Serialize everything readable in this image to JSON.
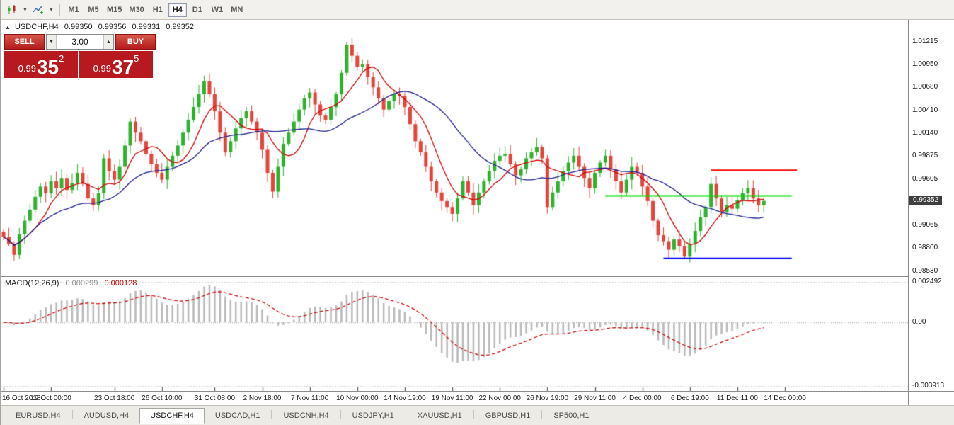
{
  "toolbar": {
    "timeframes": [
      "M1",
      "M5",
      "M15",
      "M30",
      "H1",
      "H4",
      "D1",
      "W1",
      "MN"
    ],
    "active_timeframe": "H4",
    "icons": [
      "candlestick-chart-icon",
      "indicators-icon"
    ],
    "caret_glyph": "▼"
  },
  "chart": {
    "one_click_toggle": "▲",
    "symbol_period": "USDCHF,H4",
    "ohlc": {
      "open": "0.99350",
      "high": "0.99356",
      "low": "0.99331",
      "close": "0.99352"
    },
    "trade_panel": {
      "sell_label": "SELL",
      "buy_label": "BUY",
      "volume": "3.00",
      "volume_down_icon": "▼",
      "volume_up_icon": "▲",
      "sell_price": {
        "prefix": "0.99",
        "big": "35",
        "sup": "2"
      },
      "buy_price": {
        "prefix": "0.99",
        "big": "37",
        "sup": "5"
      }
    },
    "price_axis": {
      "labels": [
        "1.01215",
        "1.00950",
        "1.00680",
        "1.00410",
        "1.00140",
        "0.99875",
        "0.99605",
        "0.99065",
        "0.98800",
        "0.98530"
      ],
      "current_price": "0.99352"
    }
  },
  "macd_panel": {
    "name": "MACD(12,26,9)",
    "value_main": "0.000299",
    "value_signal": "0.000128",
    "axis_labels": [
      "0.002492",
      "0.00",
      "-0.003913"
    ],
    "axis_values": [
      0.002492,
      0,
      -0.003913
    ]
  },
  "chart_data": {
    "type": "candlestick",
    "title": "USDCHF,H4",
    "symbol": "USDCHF",
    "timeframe": "H4",
    "ylim": [
      0.9847,
      1.0147
    ],
    "up_color": "#2db22d",
    "down_color": "#e5433b",
    "closes": [
      0.9893,
      0.9885,
      0.9872,
      0.9896,
      0.9912,
      0.9925,
      0.994,
      0.9952,
      0.9944,
      0.9958,
      0.995,
      0.9962,
      0.9948,
      0.9956,
      0.9968,
      0.9955,
      0.9938,
      0.993,
      0.9944,
      0.9985,
      0.997,
      0.996,
      0.9975,
      1.0,
      1.0028,
      1.0015,
      1.0005,
      0.999,
      0.9978,
      0.9968,
      0.996,
      0.9975,
      0.9988,
      1.0,
      1.0015,
      1.003,
      1.0045,
      1.006,
      1.0075,
      1.006,
      1.004,
      1.0015,
      0.9992,
      1.0005,
      1.002,
      1.0032,
      1.004,
      1.0028,
      1.0015,
      0.9995,
      0.9968,
      0.9946,
      0.9975,
      1.0002,
      1.0015,
      1.0028,
      1.0042,
      1.0055,
      1.0062,
      1.0048,
      1.0035,
      1.003,
      1.0045,
      1.006,
      1.0085,
      1.0118,
      1.0105,
      1.0092,
      1.0095,
      1.008,
      1.0068,
      1.0055,
      1.0042,
      1.0052,
      1.006,
      1.0058,
      1.0045,
      1.0025,
      1.0005,
      0.9992,
      0.9975,
      0.9958,
      0.9945,
      0.9935,
      0.9928,
      0.992,
      0.9938,
      0.9958,
      0.9945,
      0.993,
      0.9945,
      0.9958,
      0.997,
      0.9982,
      0.9988,
      0.999,
      0.9978,
      0.9965,
      0.9972,
      0.9985,
      0.9992,
      0.9998,
      0.9985,
      0.9928,
      0.9945,
      0.9958,
      0.997,
      0.998,
      0.9988,
      0.9975,
      0.9962,
      0.995,
      0.9968,
      0.998,
      0.9988,
      0.9972,
      0.9958,
      0.9945,
      0.996,
      0.9975,
      0.9968,
      0.9952,
      0.9935,
      0.9912,
      0.9895,
      0.9888,
      0.9878,
      0.989,
      0.9882,
      0.987,
      0.9885,
      0.99,
      0.9916,
      0.9928,
      0.9955,
      0.9938,
      0.9922,
      0.993,
      0.9926,
      0.9936,
      0.9944,
      0.995,
      0.9938,
      0.993,
      0.99352
    ],
    "moving_averages": [
      {
        "period": 7,
        "color": "#d40000"
      },
      {
        "period": 21,
        "color": "#1c1c8f"
      }
    ],
    "horizontal_lines": [
      {
        "price": 0.9971,
        "color": "#ff0000",
        "from_index": 134,
        "to_index": 150.3
      },
      {
        "price": 0.9941,
        "color": "#00dd00",
        "from_index": 114,
        "to_index": 149.3
      },
      {
        "price": 0.9868,
        "color": "#0000ee",
        "from_index": 125,
        "to_index": 149.3
      }
    ],
    "x_ticks": [
      {
        "i": 0,
        "label": "16 Oct 2018"
      },
      {
        "i": 9,
        "label": "19 Oct 00:00"
      },
      {
        "i": 21,
        "label": "23 Oct 18:00"
      },
      {
        "i": 30,
        "label": "26 Oct 10:00"
      },
      {
        "i": 40,
        "label": "31 Oct 08:00"
      },
      {
        "i": 49,
        "label": "2 Nov 18:00"
      },
      {
        "i": 58,
        "label": "7 Nov 11:00"
      },
      {
        "i": 67,
        "label": "10 Nov 00:00"
      },
      {
        "i": 76,
        "label": "14 Nov 19:00"
      },
      {
        "i": 85,
        "label": "19 Nov 11:00"
      },
      {
        "i": 94,
        "label": "22 Nov 00:00"
      },
      {
        "i": 103,
        "label": "26 Nov 19:00"
      },
      {
        "i": 112,
        "label": "29 Nov 11:00"
      },
      {
        "i": 121,
        "label": "4 Dec 00:00"
      },
      {
        "i": 130,
        "label": "6 Dec 19:00"
      },
      {
        "i": 139,
        "label": "11 Dec 11:00"
      },
      {
        "i": 148,
        "label": "14 Dec 00:00"
      }
    ],
    "macd": {
      "fast": 12,
      "slow": 26,
      "signal": 9,
      "ylim": [
        -0.003913,
        0.002492
      ],
      "histogram_color": "#b9b9b9",
      "signal_color": "#cc0000"
    }
  },
  "tabs": {
    "items": [
      "EURUSD,H4",
      "AUDUSD,H4",
      "USDCHF,H4",
      "USDCAD,H1",
      "USDCNH,H4",
      "USDJPY,H1",
      "XAUUSD,H1",
      "GBPUSD,H1",
      "SP500,H1"
    ],
    "active": "USDCHF,H4"
  }
}
